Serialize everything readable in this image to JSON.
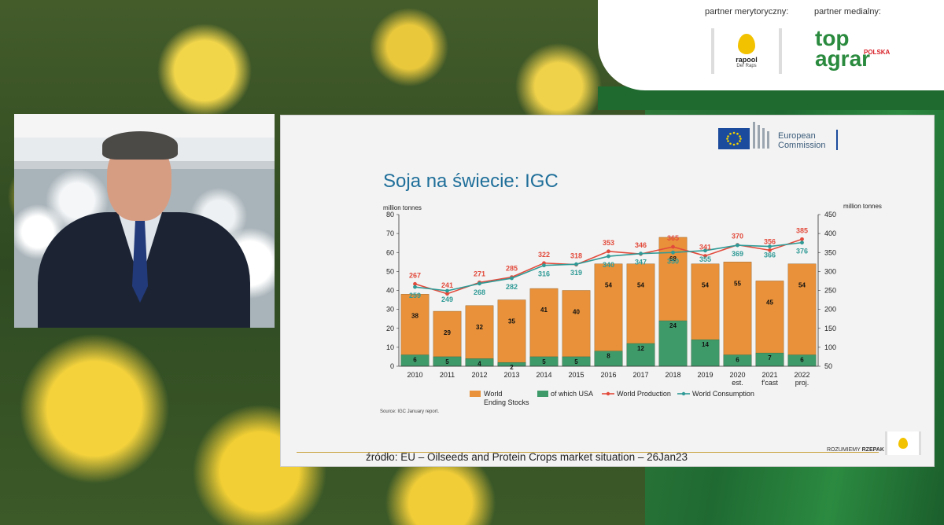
{
  "header": {
    "partner_content_label": "partner merytoryczny:",
    "partner_media_label": "partner medialny:",
    "rapool": {
      "name": "rapool",
      "tagline": "Der Raps"
    },
    "topagrar": {
      "line1": "top",
      "line2": "agrar",
      "country": "POLSKA"
    }
  },
  "slide": {
    "ec_line1": "European",
    "ec_line2": "Commission",
    "title": "Soja na świecie: IGC",
    "source_note": "Source: IGC January  report.",
    "footer": "źródło: EU – Oilseeds and Protein Crops market situation – 26Jan23",
    "rozumiemy_prefix": "ROZUMIEMY",
    "rozumiemy_bold": "RZEPAK"
  },
  "chart_data": {
    "type": "bar",
    "categories": [
      "2010",
      "2011",
      "2012",
      "2013",
      "2014",
      "2015",
      "2016",
      "2017",
      "2018",
      "2019",
      "2020 est.",
      "2021 f'cast",
      "2022 proj."
    ],
    "left_axis": {
      "label": "million tonnes",
      "ylim": [
        0,
        80
      ],
      "ticks": [
        0,
        10,
        20,
        30,
        40,
        50,
        60,
        70,
        80
      ]
    },
    "right_axis": {
      "label": "million tonnes",
      "ylim": [
        50,
        450
      ],
      "ticks": [
        50,
        100,
        150,
        200,
        250,
        300,
        350,
        400,
        450
      ]
    },
    "series": [
      {
        "name": "World Ending Stocks",
        "kind": "bar",
        "axis": "left",
        "color": "#e8913a",
        "values": [
          38,
          29,
          32,
          35,
          41,
          40,
          54,
          54,
          68,
          54,
          55,
          45,
          54
        ]
      },
      {
        "name": "of which USA",
        "kind": "bar",
        "axis": "left",
        "color": "#3f9a6a",
        "values": [
          6,
          5,
          4,
          2,
          5,
          5,
          8,
          12,
          24,
          14,
          6,
          7,
          6
        ]
      },
      {
        "name": "World Production",
        "kind": "line",
        "axis": "right",
        "color": "#e24a3b",
        "values": [
          267,
          241,
          271,
          285,
          322,
          318,
          353,
          346,
          365,
          341,
          370,
          356,
          385
        ]
      },
      {
        "name": "World Consumption",
        "kind": "line",
        "axis": "right",
        "color": "#2f9a96",
        "values": [
          259,
          249,
          268,
          282,
          316,
          319,
          340,
          347,
          350,
          355,
          369,
          366,
          376
        ]
      }
    ],
    "legend_labels": {
      "stocks_line1": "World",
      "stocks_line2": "Ending Stocks",
      "usa": "of which USA",
      "production": "World Production",
      "consumption": "World Consumption"
    },
    "legend_position": "bottom",
    "grid": false
  }
}
